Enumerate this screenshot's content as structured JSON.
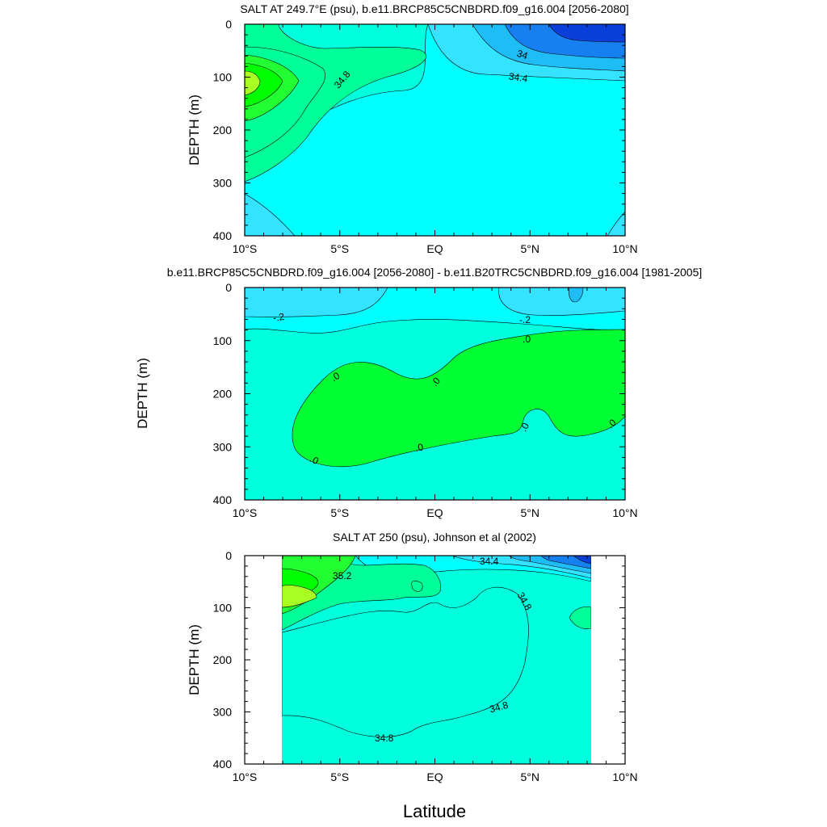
{
  "colors": {
    "s_336": "#0b3fd9",
    "s_340": "#1680f0",
    "s_344": "#1fbdf5",
    "s_346": "#33e3ff",
    "s_348": "#00ffff",
    "s_350": "#00ffdd",
    "s_352": "#00ff99",
    "s_354": "#22ff33",
    "s_356": "#00ff00",
    "s_358": "#aaff22",
    "d_neg2": "#33e3ff",
    "d_neg1": "#00ffff",
    "d_0": "#00ffdd",
    "d_pos": "#00ff33"
  },
  "x_axis": {
    "label": "Latitude",
    "ticks": [
      "10°S",
      "5°S",
      "EQ",
      "5°N",
      "10°N"
    ]
  },
  "chart_data": [
    {
      "type": "contour",
      "title": "SALT AT 249.7°E (psu), b.e11.BRCP85C5CNBDRD.f09_g16.004 [2056-2080]",
      "xlabel": "Latitude",
      "ylabel": "DEPTH (m)",
      "xlim": [
        -10,
        10
      ],
      "ylim": [
        400,
        0
      ],
      "yticks": [
        "0",
        "100",
        "200",
        "300",
        "400"
      ],
      "contour_labels": [
        "34",
        "34.4",
        "34.8"
      ],
      "data_extent_x": [
        -10,
        10
      ],
      "notes": "Saline core (~35.6 psu) near 10°S at 100 m; fresh surface water (<33.6 psu) near 8°N"
    },
    {
      "type": "contour",
      "title": "b.e11.BRCP85C5CNBDRD.f09_g16.004 [2056-2080] - b.e11.B20TRC5CNBDRD.f09_g16.004 [1981-2005]",
      "xlabel": "Latitude",
      "ylabel": "DEPTH (m)",
      "xlim": [
        -10,
        10
      ],
      "ylim": [
        400,
        0
      ],
      "yticks": [
        "0",
        "100",
        "200",
        "300",
        "400"
      ],
      "contour_labels": [
        "-.2",
        "-.2",
        ".0",
        ".0",
        ".0",
        ".0",
        ".0",
        ".0",
        ".0"
      ],
      "data_extent_x": [
        -10,
        10
      ],
      "notes": "Freshening (-0.2) in upper 80 m; positive anomaly band 100-330 m"
    },
    {
      "type": "contour",
      "title": "SALT AT 250 (psu), Johnson et al (2002)",
      "xlabel": "Latitude",
      "ylabel": "DEPTH (m)",
      "xlim": [
        -10,
        10
      ],
      "ylim": [
        400,
        0
      ],
      "yticks": [
        "0",
        "100",
        "200",
        "300",
        "400"
      ],
      "contour_labels": [
        "35.2",
        "34.4",
        "34.8",
        "34.8",
        "34.8"
      ],
      "data_extent_x": [
        -8,
        8
      ],
      "notes": "Observations span 8°S-8°N; saline core near 8°S at 80 m"
    }
  ]
}
